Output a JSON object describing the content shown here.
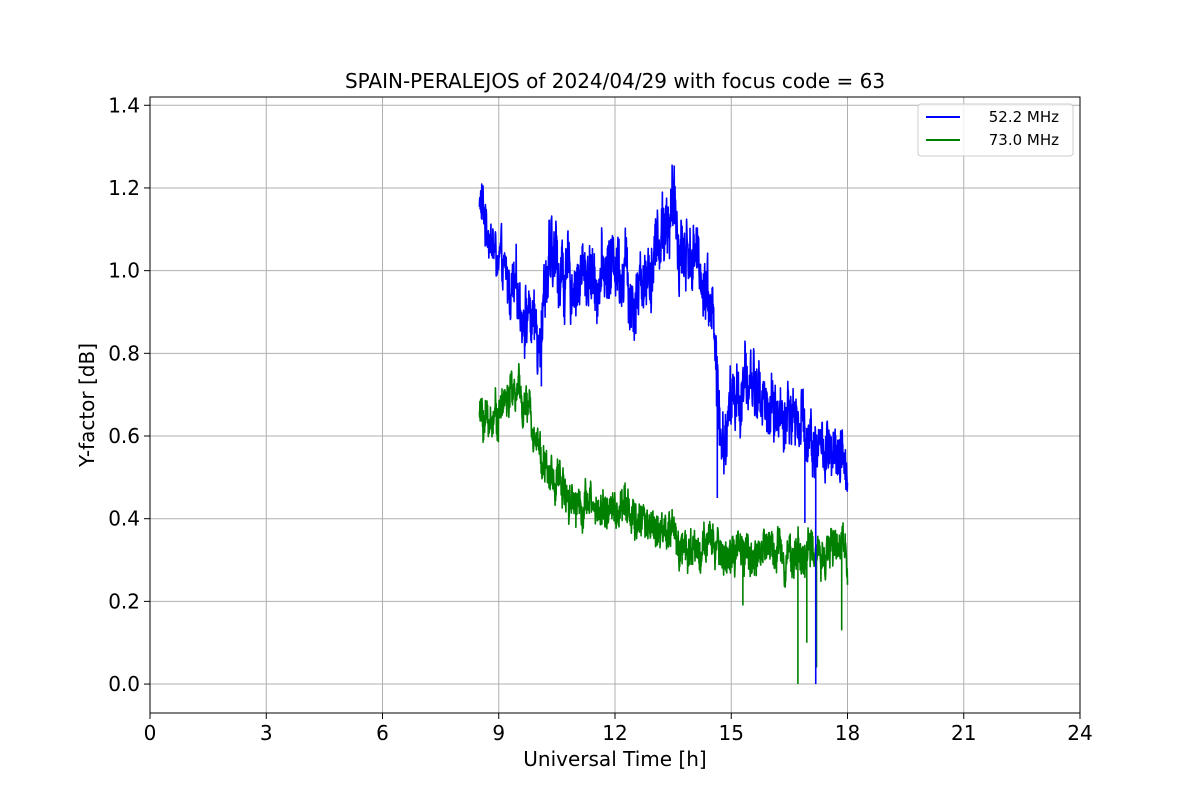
{
  "chart_data": {
    "type": "line",
    "title": "SPAIN-PERALEJOS of 2024/04/29 with focus code = 63",
    "xlabel": "Universal Time [h]",
    "ylabel": "Y-factor [dB]",
    "xlim": [
      0,
      24
    ],
    "ylim": [
      -0.07,
      1.42
    ],
    "xticks": [
      "0",
      "3",
      "6",
      "9",
      "12",
      "15",
      "18",
      "21",
      "24"
    ],
    "yticks": [
      "0.0",
      "0.2",
      "0.4",
      "0.6",
      "0.8",
      "1.0",
      "1.2",
      "1.4"
    ],
    "grid": true,
    "legend_position": "top-right",
    "series": [
      {
        "name": "52.2 MHz",
        "color": "#0000ff",
        "x": [
          8.5,
          8.75,
          9.0,
          9.25,
          9.5,
          9.75,
          10.0,
          10.25,
          10.5,
          10.75,
          11.0,
          11.25,
          11.5,
          11.75,
          12.0,
          12.25,
          12.5,
          12.75,
          13.0,
          13.25,
          13.5,
          13.75,
          14.0,
          14.25,
          14.5,
          14.75,
          15.0,
          15.25,
          15.5,
          15.75,
          16.0,
          16.25,
          16.5,
          16.75,
          17.0,
          17.25,
          17.5,
          17.75,
          18.0
        ],
        "center": [
          1.17,
          1.09,
          1.01,
          0.96,
          0.93,
          0.9,
          0.84,
          1.0,
          1.02,
          0.97,
          0.97,
          1.0,
          0.98,
          1.0,
          1.03,
          1.02,
          0.95,
          1.0,
          1.04,
          1.12,
          1.14,
          1.05,
          1.04,
          1.0,
          0.93,
          0.55,
          0.68,
          0.7,
          0.74,
          0.7,
          0.66,
          0.65,
          0.66,
          0.64,
          0.61,
          0.58,
          0.55,
          0.52,
          0.53
        ],
        "amplitude": [
          0.07,
          0.07,
          0.08,
          0.08,
          0.09,
          0.1,
          0.1,
          0.11,
          0.11,
          0.1,
          0.1,
          0.1,
          0.1,
          0.1,
          0.11,
          0.12,
          0.12,
          0.12,
          0.11,
          0.11,
          0.11,
          0.11,
          0.1,
          0.1,
          0.11,
          0.1,
          0.1,
          0.1,
          0.1,
          0.1,
          0.09,
          0.09,
          0.09,
          0.09,
          0.09,
          0.09,
          0.09,
          0.09,
          0.08
        ],
        "spikes": [
          [
            17.18,
            0.0
          ],
          [
            14.64,
            0.45
          ],
          [
            10.1,
            0.72
          ],
          [
            16.9,
            0.39
          ]
        ]
      },
      {
        "name": "73.0 MHz",
        "color": "#008000",
        "x": [
          8.5,
          8.75,
          9.0,
          9.25,
          9.5,
          9.75,
          10.0,
          10.25,
          10.5,
          10.75,
          11.0,
          11.25,
          11.5,
          11.75,
          12.0,
          12.25,
          12.5,
          12.75,
          13.0,
          13.25,
          13.5,
          13.75,
          14.0,
          14.25,
          14.5,
          14.75,
          15.0,
          15.25,
          15.5,
          15.75,
          16.0,
          16.25,
          16.5,
          16.75,
          17.0,
          17.25,
          17.5,
          17.75,
          18.0
        ],
        "center": [
          0.65,
          0.64,
          0.66,
          0.7,
          0.7,
          0.66,
          0.6,
          0.5,
          0.5,
          0.47,
          0.44,
          0.44,
          0.42,
          0.43,
          0.41,
          0.43,
          0.39,
          0.4,
          0.38,
          0.37,
          0.35,
          0.34,
          0.33,
          0.33,
          0.33,
          0.32,
          0.31,
          0.31,
          0.31,
          0.32,
          0.33,
          0.33,
          0.32,
          0.31,
          0.32,
          0.32,
          0.33,
          0.32,
          0.33
        ],
        "amplitude": [
          0.06,
          0.06,
          0.06,
          0.06,
          0.06,
          0.06,
          0.06,
          0.06,
          0.06,
          0.06,
          0.06,
          0.06,
          0.06,
          0.06,
          0.06,
          0.06,
          0.06,
          0.06,
          0.06,
          0.06,
          0.06,
          0.06,
          0.06,
          0.06,
          0.06,
          0.06,
          0.06,
          0.06,
          0.06,
          0.06,
          0.06,
          0.06,
          0.06,
          0.06,
          0.06,
          0.06,
          0.06,
          0.06,
          0.06
        ],
        "spikes": [
          [
            16.72,
            0.0
          ],
          [
            17.2,
            0.04
          ],
          [
            17.85,
            0.13
          ],
          [
            16.95,
            0.1
          ],
          [
            15.3,
            0.19
          ]
        ]
      }
    ]
  }
}
